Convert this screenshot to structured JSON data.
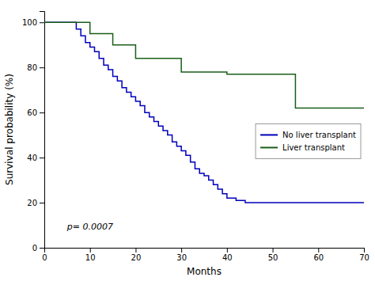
{
  "chart_data": {
    "type": "step",
    "xlabel": "Months",
    "ylabel": "Survival probability (%)",
    "xlim": [
      0,
      70
    ],
    "ylim": [
      0,
      105
    ],
    "xticks": [
      0,
      10,
      20,
      30,
      40,
      50,
      60,
      70
    ],
    "yticks": [
      0,
      20,
      40,
      60,
      80,
      100
    ],
    "grid": false,
    "legend": "right",
    "series": [
      {
        "name": "No liver transplant",
        "color": "#0000bb",
        "x": [
          0,
          6,
          7,
          8,
          9,
          10,
          11,
          12,
          13,
          14,
          15,
          16,
          17,
          18,
          19,
          20,
          21,
          22,
          23,
          24,
          25,
          26,
          27,
          28,
          29,
          30,
          31,
          32,
          33,
          34,
          35,
          36,
          37,
          38,
          39,
          40,
          42,
          44,
          70
        ],
        "values": [
          100,
          100,
          97,
          94,
          91,
          89,
          87,
          84,
          81,
          79,
          76,
          74,
          71,
          69,
          67,
          65,
          63,
          60,
          58,
          56,
          54,
          52,
          50,
          47,
          45,
          43,
          41,
          38,
          35,
          33,
          32,
          30,
          28,
          26,
          24,
          22,
          21,
          20,
          20
        ]
      },
      {
        "name": "Liver transplant",
        "color": "#1a5e1a",
        "x": [
          0,
          10,
          15,
          20,
          25,
          30,
          40,
          55,
          70
        ],
        "values": [
          100,
          95,
          90,
          84,
          84,
          78,
          77,
          62,
          62
        ]
      }
    ],
    "annotations": [
      {
        "text": "p= 0.0007",
        "x": 5,
        "y": 8
      }
    ]
  }
}
